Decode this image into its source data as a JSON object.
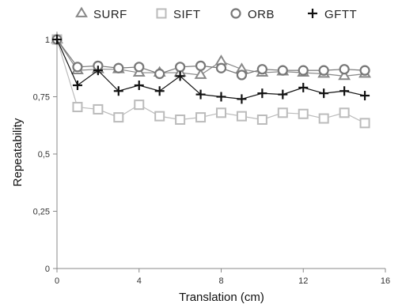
{
  "chart_data": {
    "type": "line",
    "title": "",
    "xlabel": "Translation (cm)",
    "ylabel": "Repeatability",
    "xlim": [
      0,
      16
    ],
    "ylim": [
      0,
      1
    ],
    "x_ticks": [
      0,
      4,
      8,
      12,
      16
    ],
    "y_ticks": [
      0,
      0.25,
      0.5,
      0.75,
      1
    ],
    "x_tick_labels": [
      "0",
      "4",
      "8",
      "12",
      "16"
    ],
    "y_tick_labels": [
      "0",
      "0,25",
      "0,5",
      "0,75",
      "1"
    ],
    "grid": false,
    "legend_position": "top",
    "x": [
      0,
      1,
      2,
      3,
      4,
      5,
      6,
      7,
      8,
      9,
      10,
      11,
      12,
      13,
      14,
      15
    ],
    "series": [
      {
        "name": "SURF",
        "marker": "triangle",
        "color": "#888888",
        "values": [
          1.0,
          0.865,
          0.87,
          0.87,
          0.855,
          0.855,
          0.855,
          0.845,
          0.905,
          0.87,
          0.855,
          0.86,
          0.855,
          0.85,
          0.84,
          0.85
        ]
      },
      {
        "name": "SIFT",
        "marker": "square",
        "color": "#bbbbbb",
        "values": [
          1.0,
          0.705,
          0.695,
          0.66,
          0.715,
          0.665,
          0.65,
          0.66,
          0.68,
          0.665,
          0.65,
          0.68,
          0.675,
          0.655,
          0.68,
          0.635
        ]
      },
      {
        "name": "ORB",
        "marker": "circle",
        "color": "#777777",
        "values": [
          1.0,
          0.88,
          0.885,
          0.875,
          0.88,
          0.85,
          0.88,
          0.885,
          0.875,
          0.845,
          0.87,
          0.865,
          0.865,
          0.865,
          0.87,
          0.865
        ]
      },
      {
        "name": "GFTT",
        "marker": "plus",
        "color": "#111111",
        "values": [
          1.0,
          0.8,
          0.865,
          0.775,
          0.8,
          0.775,
          0.84,
          0.76,
          0.75,
          0.74,
          0.765,
          0.76,
          0.79,
          0.765,
          0.775,
          0.755
        ]
      }
    ]
  }
}
